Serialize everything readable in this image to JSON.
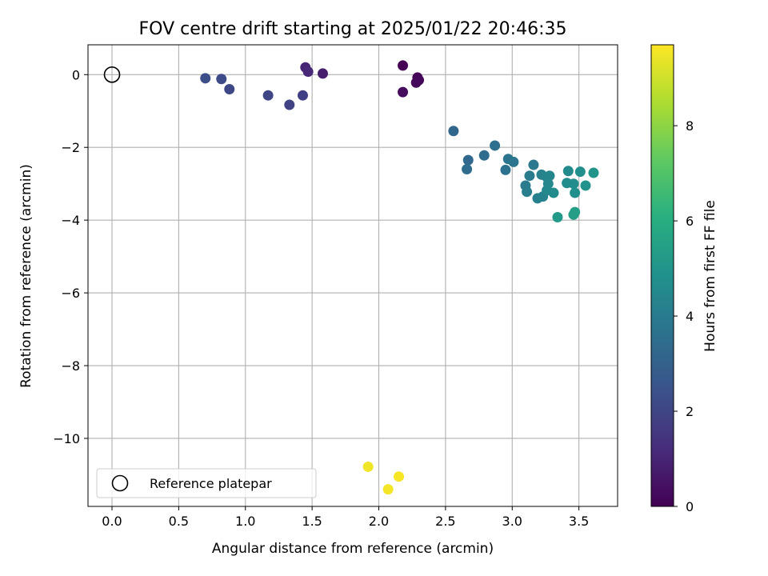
{
  "chart_data": {
    "type": "scatter",
    "title": "FOV centre drift starting at 2025/01/22 20:46:35",
    "xlabel": "Angular distance from reference (arcmin)",
    "ylabel": "Rotation from reference (arcmin)",
    "xlim": [
      -0.18,
      3.79
    ],
    "ylim": [
      -11.87,
      0.82
    ],
    "xticks": [
      0.0,
      0.5,
      1.0,
      1.5,
      2.0,
      2.5,
      3.0,
      3.5
    ],
    "xtick_labels": [
      "0.0",
      "0.5",
      "1.0",
      "1.5",
      "2.0",
      "2.5",
      "3.0",
      "3.5"
    ],
    "yticks": [
      0,
      -2,
      -4,
      -6,
      -8,
      -10
    ],
    "ytick_labels": [
      "0",
      "−2",
      "−4",
      "−6",
      "−8",
      "−10"
    ],
    "grid": true,
    "legend": {
      "placement": "lower-left",
      "entries": [
        "Reference platepar"
      ]
    },
    "reference": {
      "x": 0.0,
      "y": 0.0
    },
    "colorbar": {
      "label": "Hours from first FF file",
      "range": [
        0,
        9.7
      ],
      "ticks": [
        0,
        2,
        4,
        6,
        8
      ],
      "tick_labels": [
        "0",
        "2",
        "4",
        "6",
        "8"
      ],
      "colormap": "viridis"
    },
    "points": [
      {
        "x": 2.18,
        "y": 0.25,
        "c": 0.0
      },
      {
        "x": 2.29,
        "y": -0.08,
        "c": 0.1
      },
      {
        "x": 2.3,
        "y": -0.15,
        "c": 0.15
      },
      {
        "x": 2.28,
        "y": -0.22,
        "c": 0.2
      },
      {
        "x": 2.18,
        "y": -0.48,
        "c": 0.3
      },
      {
        "x": 1.58,
        "y": 0.03,
        "c": 0.8
      },
      {
        "x": 1.45,
        "y": 0.2,
        "c": 1.0
      },
      {
        "x": 1.47,
        "y": 0.08,
        "c": 1.1
      },
      {
        "x": 1.43,
        "y": -0.57,
        "c": 1.8
      },
      {
        "x": 1.33,
        "y": -0.83,
        "c": 1.9
      },
      {
        "x": 1.17,
        "y": -0.57,
        "c": 2.0
      },
      {
        "x": 0.88,
        "y": -0.4,
        "c": 2.1
      },
      {
        "x": 0.82,
        "y": -0.12,
        "c": 2.2
      },
      {
        "x": 0.7,
        "y": -0.1,
        "c": 2.3
      },
      {
        "x": 2.56,
        "y": -1.55,
        "c": 3.2
      },
      {
        "x": 2.67,
        "y": -2.35,
        "c": 3.3
      },
      {
        "x": 2.66,
        "y": -2.6,
        "c": 3.4
      },
      {
        "x": 2.79,
        "y": -2.22,
        "c": 3.4
      },
      {
        "x": 2.87,
        "y": -1.95,
        "c": 3.5
      },
      {
        "x": 2.95,
        "y": -2.62,
        "c": 3.6
      },
      {
        "x": 2.97,
        "y": -2.32,
        "c": 3.7
      },
      {
        "x": 3.01,
        "y": -2.4,
        "c": 3.8
      },
      {
        "x": 3.16,
        "y": -2.48,
        "c": 3.9
      },
      {
        "x": 3.13,
        "y": -2.78,
        "c": 4.0
      },
      {
        "x": 3.1,
        "y": -3.05,
        "c": 4.0
      },
      {
        "x": 3.11,
        "y": -3.22,
        "c": 4.1
      },
      {
        "x": 3.19,
        "y": -3.4,
        "c": 4.2
      },
      {
        "x": 3.23,
        "y": -3.35,
        "c": 4.3
      },
      {
        "x": 3.22,
        "y": -2.75,
        "c": 4.3
      },
      {
        "x": 3.26,
        "y": -2.82,
        "c": 4.4
      },
      {
        "x": 3.28,
        "y": -2.78,
        "c": 4.4
      },
      {
        "x": 3.27,
        "y": -3.0,
        "c": 4.5
      },
      {
        "x": 3.26,
        "y": -3.18,
        "c": 4.5
      },
      {
        "x": 3.31,
        "y": -3.25,
        "c": 4.6
      },
      {
        "x": 3.42,
        "y": -2.65,
        "c": 4.6
      },
      {
        "x": 3.41,
        "y": -2.98,
        "c": 4.7
      },
      {
        "x": 3.46,
        "y": -3.0,
        "c": 4.7
      },
      {
        "x": 3.47,
        "y": -3.25,
        "c": 4.8
      },
      {
        "x": 3.51,
        "y": -2.67,
        "c": 4.8
      },
      {
        "x": 3.55,
        "y": -3.05,
        "c": 4.9
      },
      {
        "x": 3.61,
        "y": -2.7,
        "c": 5.0
      },
      {
        "x": 3.34,
        "y": -3.92,
        "c": 5.2
      },
      {
        "x": 3.46,
        "y": -3.85,
        "c": 5.3
      },
      {
        "x": 3.47,
        "y": -3.78,
        "c": 5.4
      },
      {
        "x": 1.92,
        "y": -10.78,
        "c": 9.5
      },
      {
        "x": 2.07,
        "y": -11.4,
        "c": 9.55
      },
      {
        "x": 2.15,
        "y": -11.05,
        "c": 9.6
      }
    ]
  }
}
